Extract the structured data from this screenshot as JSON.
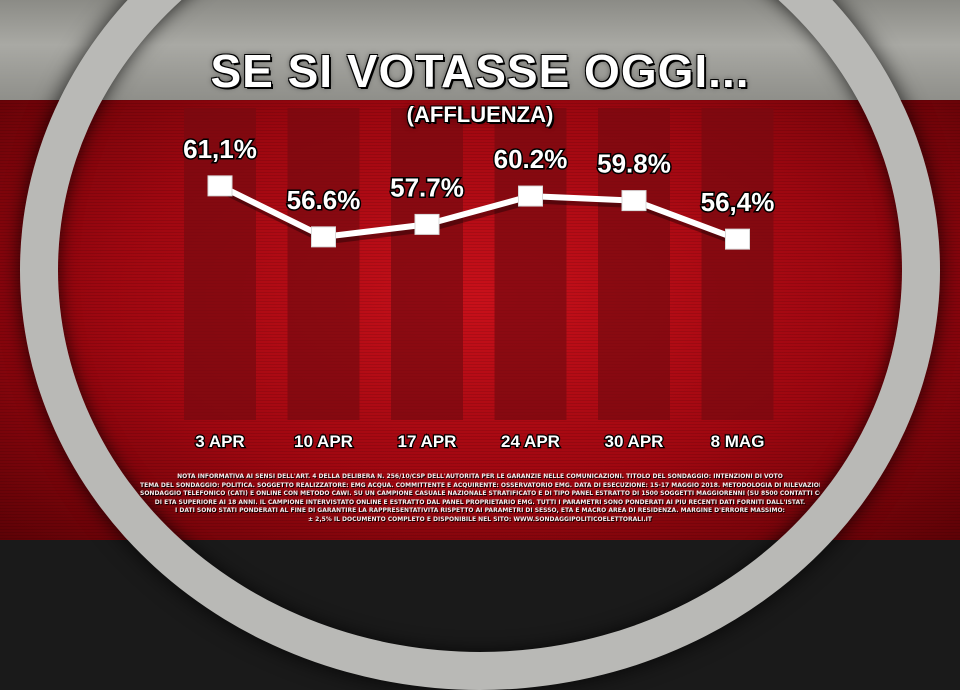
{
  "chart_data": {
    "type": "line",
    "title": "SE SI VOTASSE OGGI...",
    "subtitle": "(AFFLUENZA)",
    "categories": [
      "3 APR",
      "10 APR",
      "17 APR",
      "24 APR",
      "30 APR",
      "8 MAG"
    ],
    "series": [
      {
        "values": [
          61.1,
          56.6,
          57.7,
          60.2,
          59.8,
          56.4
        ],
        "labels": [
          "61,1%",
          "56.6%",
          "57.7%",
          "60.2%",
          "59.8%",
          "56,4%"
        ]
      }
    ],
    "ylim": [
      40,
      70
    ],
    "grid": false,
    "legend": "none",
    "colors": {
      "line": "#ffffff",
      "column": "#7a0a10",
      "background": "#b30c14"
    }
  },
  "footnote": {
    "lines": [
      "NOTA INFORMATIVA AI SENSI DELL'ART. 4 DELLA DELIBERA N. 256/10/CSP DELL'AUTORITÀ PER LE GARANZIE NELLE COMUNICAZIONI. TITOLO DEL SONDAGGIO: INTENZIONI DI VOTO",
      "TEMA DEL SONDAGGIO: POLITICA. SOGGETTO REALIZZATORE: EMG ACQUA. COMMITTENTE E ACQUIRENTE: OSSERVATORIO EMG. DATA DI ESECUZIONE: 15-17 MAGGIO 2018. METODOLOGIA DI RILEVAZIONE:",
      "SONDAGGIO TELEFONICO (CATI) E ONLINE CON METODO CAWI. SU UN CAMPIONE CASUALE NAZIONALE STRATIFICATO E DI TIPO PANEL ESTRATTO DI 1500 SOGGETTI MAGGIORENNI (SU 8500 CONTATTI COMPLESSIVI).",
      "DI ETÀ SUPERIORE AI 18 ANNI. IL CAMPIONE INTERVISTATO ONLINE È ESTRATTO DAL PANEL PROPRIETARIO EMG. TUTTI I PARAMETRI SONO PONDERATI AI PIÙ RECENTI DATI FORNITI DALL'ISTAT.",
      "I DATI SONO STATI PONDERATI AL FINE DI GARANTIRE LA RAPPRESENTATIVITÀ RISPETTO AI PARAMETRI DI SESSO, ETÀ E MACRO AREA DI RESIDENZA. MARGINE D'ERRORE MASSIMO:",
      "± 2,5% IL DOCUMENTO COMPLETO È DISPONIBILE NEL SITO: WWW.SONDAGGIPOLITICOELETTORALI.IT"
    ]
  }
}
